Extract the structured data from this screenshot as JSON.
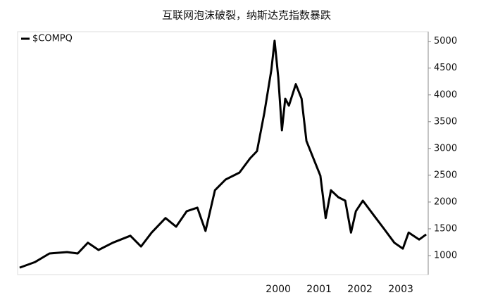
{
  "chart_data": {
    "type": "line",
    "title": "互联网泡沫破裂，纳斯达克指数暴跌",
    "xlim": [
      1993.62,
      2003.67
    ],
    "xticks": [
      2000,
      2001,
      2002,
      2003
    ],
    "ylim": [
      645,
      5180
    ],
    "yticks": [
      1000,
      1500,
      2000,
      2500,
      3000,
      3500,
      4000,
      4500,
      5000
    ],
    "series": [
      {
        "name": "$COMPQ",
        "color": "#000000",
        "x": [
          1993.67,
          1994.05,
          1994.4,
          1994.83,
          1995.09,
          1995.34,
          1995.6,
          1995.95,
          1996.38,
          1996.64,
          1996.9,
          1997.24,
          1997.5,
          1997.76,
          1998.02,
          1998.22,
          1998.45,
          1998.71,
          1999.05,
          1999.31,
          1999.48,
          1999.66,
          1999.83,
          1999.91,
          2000.0,
          2000.09,
          2000.17,
          2000.26,
          2000.43,
          2000.57,
          2000.69,
          2000.86,
          2001.03,
          2001.16,
          2001.29,
          2001.47,
          2001.64,
          2001.78,
          2001.9,
          2002.07,
          2002.33,
          2002.59,
          2002.84,
          2003.05,
          2003.19,
          2003.45,
          2003.62
        ],
        "values": [
          775,
          880,
          1040,
          1065,
          1040,
          1240,
          1105,
          1240,
          1370,
          1170,
          1430,
          1700,
          1540,
          1830,
          1895,
          1460,
          2220,
          2420,
          2550,
          2815,
          2950,
          3670,
          4460,
          5010,
          4330,
          3340,
          3930,
          3800,
          4200,
          3930,
          3140,
          2815,
          2490,
          1700,
          2220,
          2090,
          2025,
          1430,
          1830,
          2025,
          1760,
          1500,
          1240,
          1130,
          1430,
          1300,
          1395
        ]
      }
    ]
  }
}
